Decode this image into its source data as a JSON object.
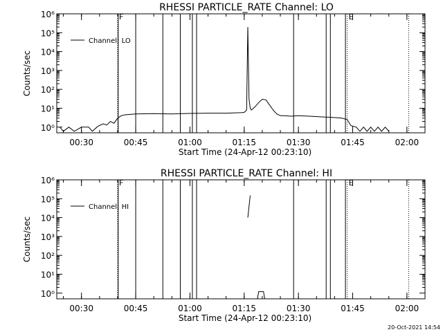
{
  "footer": {
    "date_stamp": "20-Oct-2021 14:54"
  },
  "chart_data": [
    {
      "type": "line",
      "title": "RHESSI PARTICLE_RATE Channel: LO",
      "xlabel": "Start Time (24-Apr-12 00:23:10)",
      "ylabel": "Counts/sec",
      "yscale": "log",
      "xlim": [
        "00:23:10",
        "02:05:00"
      ],
      "ylim": [
        0.5,
        1000000
      ],
      "x_ticks": [
        "00:30",
        "00:45",
        "01:00",
        "01:15",
        "01:30",
        "01:45",
        "02:00"
      ],
      "y_ticks": [
        {
          "value": 1,
          "label": "10⁰"
        },
        {
          "value": 10,
          "label": "10¹"
        },
        {
          "value": 100,
          "label": "10²"
        },
        {
          "value": 1000,
          "label": "10³"
        },
        {
          "value": 10000,
          "label": "10⁴"
        },
        {
          "value": 100000,
          "label": "10⁵"
        },
        {
          "value": 1000000,
          "label": "10⁶"
        }
      ],
      "legend": {
        "position": "top-left",
        "entries": [
          "Channel: LO"
        ]
      },
      "markers": [
        {
          "label": "F",
          "time": "00:40:00"
        },
        {
          "label": "E",
          "time": "01:43:30"
        }
      ],
      "solid_vlines": [
        "00:40:10",
        "00:45:00",
        "00:52:30",
        "00:57:20",
        "01:00:40",
        "01:01:50",
        "01:28:40",
        "01:37:40",
        "01:38:50",
        "01:43:00"
      ],
      "dotted_vlines": [
        "00:40:00",
        "01:43:30",
        "02:00:30"
      ],
      "series": [
        {
          "name": "Channel: LO",
          "x": [
            "00:24:00",
            "00:25:00",
            "00:26:30",
            "00:28:00",
            "00:30:00",
            "00:32:00",
            "00:33:00",
            "00:34:30",
            "00:36:00",
            "00:37:00",
            "00:38:00",
            "00:39:00",
            "00:40:00",
            "00:41:00",
            "00:42:00",
            "00:45:00",
            "00:50:00",
            "00:55:00",
            "01:00:00",
            "01:05:00",
            "01:10:00",
            "01:14:00",
            "01:15:00",
            "01:15:40",
            "01:16:00",
            "01:16:20",
            "01:16:40",
            "01:17:00",
            "01:18:00",
            "01:19:00",
            "01:20:00",
            "01:21:00",
            "01:22:00",
            "01:23:00",
            "01:24:00",
            "01:25:00",
            "01:26:00",
            "01:28:00",
            "01:30:00",
            "01:33:00",
            "01:36:00",
            "01:39:00",
            "01:42:00",
            "01:43:30",
            "01:44:30",
            "01:46:00",
            "01:47:00",
            "01:48:00",
            "01:49:00",
            "01:50:00",
            "01:51:00",
            "01:52:00",
            "01:53:00",
            "01:54:00",
            "01:55:00"
          ],
          "y": [
            1,
            0.6,
            1,
            0.6,
            1,
            1,
            0.6,
            1.1,
            1.5,
            1.3,
            2,
            1.6,
            3,
            4,
            4.5,
            5,
            5.2,
            5,
            5.3,
            5.5,
            5.5,
            5.8,
            6,
            8,
            200000,
            30,
            10,
            8,
            12,
            20,
            30,
            28,
            15,
            8,
            5,
            4,
            4,
            3.8,
            4,
            3.8,
            3.5,
            3.3,
            3,
            2.5,
            1.2,
            1,
            0.6,
            1,
            0.6,
            1,
            0.6,
            1,
            0.6,
            1,
            0.6
          ]
        }
      ]
    },
    {
      "type": "line",
      "title": "RHESSI PARTICLE_RATE Channel: HI",
      "xlabel": "Start Time (24-Apr-12 00:23:10)",
      "ylabel": "Counts/sec",
      "yscale": "log",
      "xlim": [
        "00:23:10",
        "02:05:00"
      ],
      "ylim": [
        0.5,
        1000000
      ],
      "x_ticks": [
        "00:30",
        "00:45",
        "01:00",
        "01:15",
        "01:30",
        "01:45",
        "02:00"
      ],
      "y_ticks": [
        {
          "value": 1,
          "label": "10⁰"
        },
        {
          "value": 10,
          "label": "10¹"
        },
        {
          "value": 100,
          "label": "10²"
        },
        {
          "value": 1000,
          "label": "10³"
        },
        {
          "value": 10000,
          "label": "10⁴"
        },
        {
          "value": 100000,
          "label": "10⁵"
        },
        {
          "value": 1000000,
          "label": "10⁶"
        }
      ],
      "legend": {
        "position": "top-left",
        "entries": [
          "Channel: HI"
        ]
      },
      "markers": [
        {
          "label": "F",
          "time": "00:40:00"
        },
        {
          "label": "E",
          "time": "01:43:30"
        }
      ],
      "solid_vlines": [
        "00:40:10",
        "00:45:00",
        "00:52:30",
        "00:57:20",
        "01:00:40",
        "01:01:50",
        "01:28:40",
        "01:37:40",
        "01:38:50",
        "01:43:00"
      ],
      "dotted_vlines": [
        "00:40:00",
        "01:43:30",
        "02:00:30"
      ],
      "series": [
        {
          "name": "Channel: HI",
          "segments": [
            {
              "x": [
                "01:16:00",
                "01:16:40"
              ],
              "y": [
                10000,
                150000
              ]
            },
            {
              "x": [
                "01:18:40",
                "01:19:00",
                "01:20:20",
                "01:20:40"
              ],
              "y": [
                0.5,
                1.2,
                1.2,
                0.5
              ]
            }
          ]
        }
      ]
    }
  ]
}
